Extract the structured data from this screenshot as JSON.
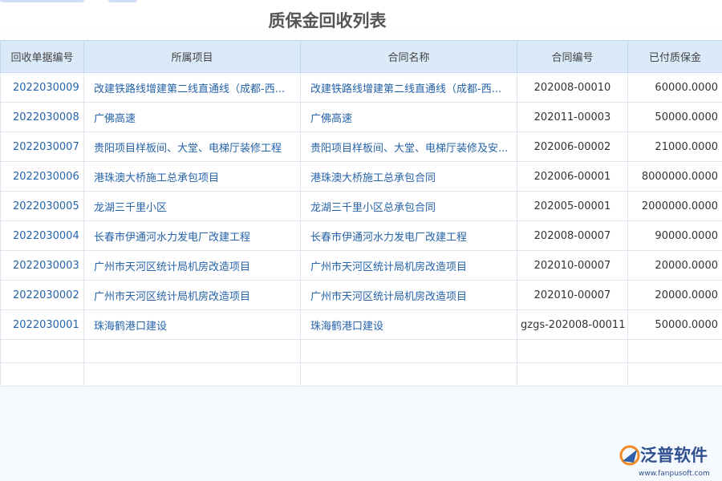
{
  "header": {
    "title": "质保金回收列表"
  },
  "table": {
    "columns": [
      "回收单据编号",
      "所属项目",
      "合同名称",
      "合同编号",
      "已付质保金"
    ],
    "rows": [
      [
        "2022030009",
        "改建铁路线增建第二线直通线（成都-西...",
        "改建铁路线增建第二线直通线（成都-西...",
        "202008-00010",
        "60000.0000"
      ],
      [
        "2022030008",
        "广佛高速",
        "广佛高速",
        "202011-00003",
        "50000.0000"
      ],
      [
        "2022030007",
        "贵阳项目样板间、大堂、电梯厅装修工程",
        "贵阳项目样板间、大堂、电梯厅装修及安...",
        "202006-00002",
        "21000.0000"
      ],
      [
        "2022030006",
        "港珠澳大桥施工总承包项目",
        "港珠澳大桥施工总承包合同",
        "202006-00001",
        "8000000.0000"
      ],
      [
        "2022030005",
        "龙湖三千里小区",
        "龙湖三千里小区总承包合同",
        "202005-00001",
        "2000000.0000"
      ],
      [
        "2022030004",
        "长春市伊通河水力发电厂改建工程",
        "长春市伊通河水力发电厂改建工程",
        "202008-00007",
        "90000.0000"
      ],
      [
        "2022030003",
        "广州市天河区统计局机房改造项目",
        "广州市天河区统计局机房改造项目",
        "202010-00007",
        "20000.0000"
      ],
      [
        "2022030002",
        "广州市天河区统计局机房改造项目",
        "广州市天河区统计局机房改造项目",
        "202010-00007",
        "20000.0000"
      ],
      [
        "2022030001",
        "珠海鹤港口建设",
        "珠海鹤港口建设",
        "gzgs-202008-00011",
        "50000.0000"
      ]
    ]
  },
  "logo": {
    "name": "泛普软件",
    "url": "www.fanpusoft.com"
  }
}
